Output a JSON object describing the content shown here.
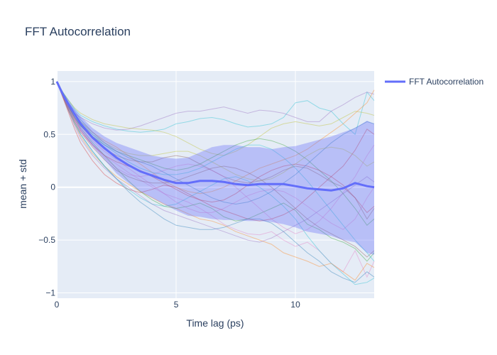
{
  "chart_data": {
    "type": "line",
    "title": "FFT Autocorrelation",
    "xlabel": "Time lag (ps)",
    "ylabel": "mean + std",
    "xlim": [
      0,
      13.3
    ],
    "ylim": [
      -1.05,
      1.1
    ],
    "x_ticks": [
      0,
      5,
      10
    ],
    "y_ticks": [
      -1,
      -0.5,
      0,
      0.5,
      1
    ],
    "x_tick_labels": [
      "0",
      "5",
      "10"
    ],
    "y_tick_labels": [
      "−1",
      "−0.5",
      "0",
      "0.5",
      "1"
    ],
    "grid": true,
    "legend_position": "top-right",
    "series": [
      {
        "name": "FFT Autocorrelation",
        "color": "#636efa",
        "x": [
          0,
          0.25,
          0.5,
          0.75,
          1,
          1.5,
          2,
          2.5,
          3,
          3.5,
          4,
          4.5,
          5,
          5.5,
          6,
          6.5,
          7,
          7.5,
          8,
          8.5,
          9,
          9.5,
          10,
          10.5,
          11,
          11.5,
          12,
          12.5,
          13,
          13.3
        ],
        "mean": [
          1,
          0.88,
          0.78,
          0.69,
          0.6,
          0.47,
          0.37,
          0.28,
          0.21,
          0.15,
          0.11,
          0.07,
          0.04,
          0.04,
          0.06,
          0.06,
          0.05,
          0.03,
          0.02,
          0.03,
          0.03,
          0.03,
          0.01,
          -0.01,
          -0.02,
          -0.03,
          -0.01,
          0.04,
          0.01,
          0.0
        ],
        "upper": [
          1,
          0.9,
          0.82,
          0.74,
          0.67,
          0.56,
          0.48,
          0.42,
          0.38,
          0.34,
          0.3,
          0.28,
          0.27,
          0.28,
          0.33,
          0.38,
          0.4,
          0.4,
          0.38,
          0.38,
          0.36,
          0.38,
          0.39,
          0.42,
          0.45,
          0.48,
          0.52,
          0.56,
          0.63,
          0.6
        ],
        "lower": [
          1,
          0.86,
          0.74,
          0.64,
          0.53,
          0.39,
          0.26,
          0.13,
          0.04,
          -0.04,
          -0.1,
          -0.16,
          -0.22,
          -0.27,
          -0.28,
          -0.3,
          -0.31,
          -0.31,
          -0.32,
          -0.32,
          -0.33,
          -0.35,
          -0.38,
          -0.42,
          -0.44,
          -0.46,
          -0.5,
          -0.52,
          -0.62,
          -0.64
        ]
      }
    ],
    "trajectories": [
      {
        "color": "#e377c2",
        "values": [
          1,
          0.87,
          0.74,
          0.62,
          0.52,
          0.4,
          0.3,
          0.22,
          0.14,
          0.07,
          0.0,
          -0.06,
          -0.1,
          -0.14,
          -0.2,
          -0.27,
          -0.35,
          -0.4,
          -0.44,
          -0.45,
          -0.42,
          -0.5,
          -0.56,
          -0.52,
          -0.6,
          -0.72,
          -0.8,
          -0.6,
          -0.85,
          -0.7
        ]
      },
      {
        "color": "#17becf",
        "values": [
          1,
          0.9,
          0.82,
          0.74,
          0.68,
          0.62,
          0.58,
          0.55,
          0.53,
          0.52,
          0.53,
          0.55,
          0.6,
          0.62,
          0.65,
          0.66,
          0.64,
          0.6,
          0.57,
          0.58,
          0.6,
          0.66,
          0.8,
          0.82,
          0.75,
          0.72,
          0.6,
          0.5,
          0.9,
          0.82
        ]
      },
      {
        "color": "#ff7f0e",
        "values": [
          1,
          0.86,
          0.72,
          0.6,
          0.48,
          0.32,
          0.2,
          0.1,
          0.03,
          -0.04,
          -0.1,
          -0.16,
          -0.2,
          -0.25,
          -0.3,
          -0.32,
          -0.36,
          -0.42,
          -0.46,
          -0.5,
          -0.54,
          -0.62,
          -0.66,
          -0.7,
          -0.75,
          -0.72,
          -0.8,
          -0.88,
          -0.72,
          -0.76
        ]
      },
      {
        "color": "#9467bd",
        "values": [
          1,
          0.88,
          0.78,
          0.7,
          0.66,
          0.6,
          0.56,
          0.54,
          0.55,
          0.58,
          0.62,
          0.66,
          0.7,
          0.72,
          0.72,
          0.74,
          0.76,
          0.73,
          0.7,
          0.73,
          0.72,
          0.7,
          0.66,
          0.62,
          0.62,
          0.72,
          0.78,
          0.85,
          0.9,
          0.88
        ]
      },
      {
        "color": "#2ca02c",
        "values": [
          1,
          0.87,
          0.76,
          0.66,
          0.56,
          0.42,
          0.3,
          0.18,
          0.06,
          -0.04,
          -0.12,
          -0.18,
          -0.2,
          -0.18,
          -0.15,
          -0.2,
          -0.28,
          -0.32,
          -0.3,
          -0.25,
          -0.2,
          -0.15,
          -0.22,
          -0.35,
          -0.4,
          -0.48,
          -0.52,
          -0.58,
          -0.7,
          -0.62
        ]
      },
      {
        "color": "#d62728",
        "values": [
          1,
          0.85,
          0.7,
          0.55,
          0.42,
          0.25,
          0.12,
          0.04,
          -0.02,
          -0.05,
          -0.02,
          0.02,
          0.0,
          -0.06,
          -0.12,
          -0.18,
          -0.22,
          -0.26,
          -0.3,
          -0.32,
          -0.3,
          -0.26,
          -0.2,
          -0.1,
          0.0,
          0.1,
          0.2,
          0.35,
          0.55,
          0.5
        ]
      },
      {
        "color": "#8c564b",
        "values": [
          1,
          0.88,
          0.76,
          0.66,
          0.58,
          0.46,
          0.36,
          0.3,
          0.26,
          0.24,
          0.24,
          0.28,
          0.3,
          0.28,
          0.22,
          0.16,
          0.1,
          0.06,
          0.04,
          0.06,
          0.1,
          0.16,
          0.2,
          0.18,
          0.12,
          0.05,
          0.0,
          -0.1,
          -0.3,
          -0.2
        ]
      },
      {
        "color": "#1f77b4",
        "values": [
          1,
          0.86,
          0.72,
          0.6,
          0.5,
          0.34,
          0.2,
          0.08,
          -0.04,
          -0.14,
          -0.22,
          -0.3,
          -0.36,
          -0.38,
          -0.4,
          -0.4,
          -0.38,
          -0.34,
          -0.3,
          -0.3,
          -0.34,
          -0.42,
          -0.52,
          -0.62,
          -0.7,
          -0.8,
          -0.86,
          -0.9,
          -0.8,
          -0.85
        ]
      },
      {
        "color": "#bcbd22",
        "values": [
          1,
          0.9,
          0.82,
          0.75,
          0.7,
          0.64,
          0.6,
          0.58,
          0.56,
          0.55,
          0.54,
          0.52,
          0.48,
          0.42,
          0.36,
          0.32,
          0.3,
          0.34,
          0.4,
          0.48,
          0.56,
          0.6,
          0.62,
          0.6,
          0.58,
          0.6,
          0.66,
          0.72,
          0.7,
          0.68
        ]
      },
      {
        "color": "#e377c2",
        "values": [
          1,
          0.86,
          0.74,
          0.64,
          0.54,
          0.4,
          0.28,
          0.18,
          0.12,
          0.1,
          0.12,
          0.16,
          0.2,
          0.22,
          0.2,
          0.16,
          0.1,
          0.0,
          -0.1,
          -0.2,
          -0.3,
          -0.38,
          -0.44,
          -0.4,
          -0.32,
          -0.2,
          -0.05,
          0.1,
          0.3,
          0.4
        ]
      },
      {
        "color": "#17becf",
        "values": [
          1,
          0.87,
          0.74,
          0.62,
          0.5,
          0.34,
          0.2,
          0.08,
          -0.02,
          -0.1,
          -0.16,
          -0.18,
          -0.16,
          -0.1,
          -0.04,
          0.02,
          0.08,
          0.1,
          0.06,
          0.0,
          -0.08,
          -0.18,
          -0.3,
          -0.46,
          -0.6,
          -0.72,
          -0.82,
          -0.92,
          -0.9,
          -0.86
        ]
      },
      {
        "color": "#ff7f0e",
        "values": [
          1,
          0.88,
          0.78,
          0.7,
          0.62,
          0.52,
          0.44,
          0.38,
          0.3,
          0.22,
          0.14,
          0.06,
          0.0,
          -0.04,
          -0.06,
          -0.04,
          0.0,
          0.06,
          0.12,
          0.18,
          0.22,
          0.26,
          0.3,
          0.36,
          0.44,
          0.52,
          0.6,
          0.7,
          0.8,
          0.92
        ]
      },
      {
        "color": "#9467bd",
        "values": [
          1,
          0.86,
          0.72,
          0.58,
          0.46,
          0.3,
          0.18,
          0.08,
          0.0,
          -0.08,
          -0.16,
          -0.22,
          -0.26,
          -0.3,
          -0.34,
          -0.38,
          -0.42,
          -0.46,
          -0.5,
          -0.52,
          -0.48,
          -0.42,
          -0.36,
          -0.3,
          -0.22,
          -0.14,
          -0.06,
          0.02,
          0.1,
          0.05
        ]
      },
      {
        "color": "#2ca02c",
        "values": [
          1,
          0.88,
          0.76,
          0.66,
          0.58,
          0.48,
          0.4,
          0.34,
          0.3,
          0.26,
          0.22,
          0.18,
          0.16,
          0.18,
          0.22,
          0.28,
          0.34,
          0.4,
          0.44,
          0.46,
          0.44,
          0.4,
          0.34,
          0.26,
          0.16,
          0.06,
          -0.06,
          -0.2,
          -0.36,
          -0.3
        ]
      },
      {
        "color": "#d62728",
        "values": [
          1,
          0.87,
          0.75,
          0.64,
          0.54,
          0.4,
          0.3,
          0.24,
          0.2,
          0.16,
          0.1,
          0.04,
          -0.02,
          -0.08,
          -0.12,
          -0.14,
          -0.12,
          -0.06,
          0.02,
          0.1,
          0.16,
          0.2,
          0.22,
          0.2,
          0.16,
          0.1,
          0.02,
          -0.1,
          -0.24,
          -0.18
        ]
      },
      {
        "color": "#1f77b4",
        "values": [
          1,
          0.9,
          0.8,
          0.72,
          0.64,
          0.52,
          0.42,
          0.34,
          0.28,
          0.24,
          0.2,
          0.14,
          0.08,
          0.02,
          -0.04,
          -0.1,
          -0.14,
          -0.16,
          -0.14,
          -0.1,
          -0.04,
          0.04,
          0.12,
          0.22,
          0.32,
          0.42,
          0.5,
          0.56,
          0.62,
          0.6
        ]
      },
      {
        "color": "#8c564b",
        "values": [
          1,
          0.86,
          0.73,
          0.62,
          0.52,
          0.38,
          0.26,
          0.16,
          0.1,
          0.06,
          0.04,
          0.04,
          0.06,
          0.1,
          0.14,
          0.18,
          0.2,
          0.18,
          0.14,
          0.08,
          0.0,
          -0.1,
          -0.2,
          -0.3,
          -0.38,
          -0.44,
          -0.5,
          -0.56,
          -0.66,
          -0.6
        ]
      },
      {
        "color": "#bcbd22",
        "values": [
          1,
          0.88,
          0.77,
          0.68,
          0.6,
          0.5,
          0.42,
          0.36,
          0.32,
          0.3,
          0.3,
          0.32,
          0.34,
          0.34,
          0.3,
          0.24,
          0.18,
          0.12,
          0.08,
          0.06,
          0.08,
          0.14,
          0.22,
          0.3,
          0.36,
          0.38,
          0.36,
          0.3,
          0.2,
          0.24
        ]
      },
      {
        "color": "#e377c2",
        "values": [
          1,
          0.87,
          0.75,
          0.65,
          0.56,
          0.44,
          0.34,
          0.26,
          0.18,
          0.1,
          0.02,
          -0.06,
          -0.14,
          -0.2,
          -0.24,
          -0.24,
          -0.2,
          -0.14,
          -0.08,
          -0.04,
          -0.02,
          -0.04,
          -0.1,
          -0.18,
          -0.26,
          -0.34,
          -0.4,
          -0.3,
          -0.1,
          0.0
        ]
      },
      {
        "color": "#17becf",
        "values": [
          1,
          0.89,
          0.79,
          0.7,
          0.62,
          0.5,
          0.4,
          0.32,
          0.24,
          0.18,
          0.14,
          0.12,
          0.12,
          0.14,
          0.18,
          0.24,
          0.3,
          0.36,
          0.4,
          0.4,
          0.36,
          0.28,
          0.18,
          0.06,
          -0.08,
          -0.22,
          -0.36,
          -0.5,
          -0.62,
          -0.7
        ]
      }
    ]
  }
}
